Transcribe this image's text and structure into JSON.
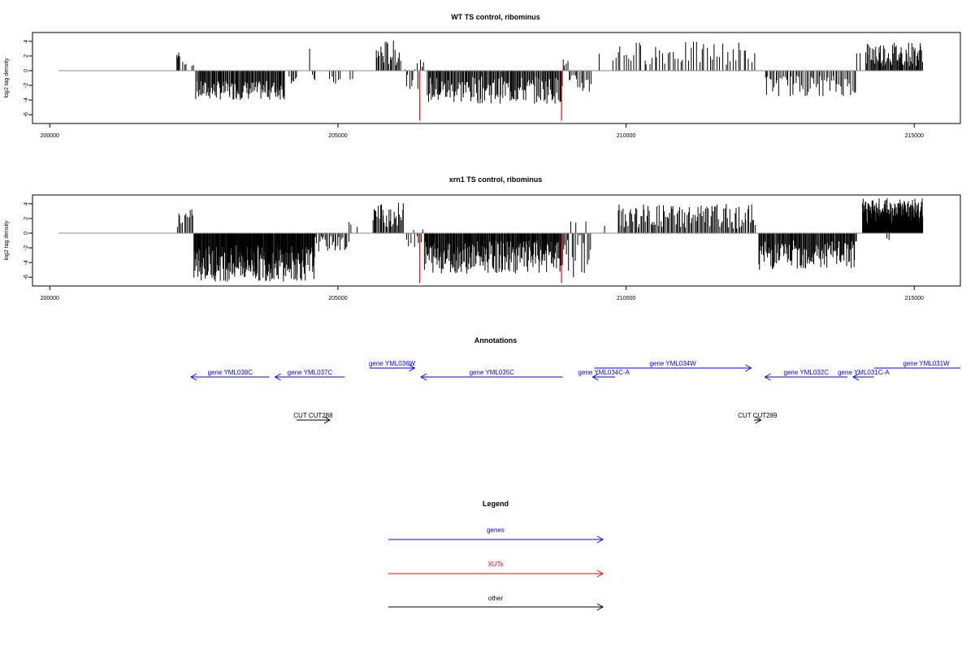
{
  "chart_data": [
    {
      "type": "bar",
      "title": "WT TS control, ribominus",
      "ylabel": "log2 tag density",
      "xlabel": "",
      "xlim": [
        199700,
        215800
      ],
      "ylim": [
        -7.2,
        5.2
      ],
      "xticks": [
        200000,
        205000,
        210000,
        215000
      ],
      "xtick_labels": [
        "200000",
        "205000",
        "210000",
        "215000"
      ],
      "yticks": [
        -6,
        -4,
        -2,
        0,
        2,
        4
      ],
      "ytick_labels": [
        "-6",
        "-4",
        "-2",
        "0",
        "2",
        "4"
      ],
      "baseline": [
        200150,
        215150
      ],
      "colors": {
        "bars": "#000000",
        "highlight": "#ff0000",
        "baseline": "#888888"
      },
      "segments": [
        {
          "from": 202200,
          "to": 202260,
          "count": 5,
          "min": 1.5,
          "max": 2.6
        },
        {
          "from": 202300,
          "to": 202380,
          "count": 3,
          "min": 0.8,
          "max": 1.3
        },
        {
          "from": 202450,
          "to": 202510,
          "count": 2,
          "min": 0.6,
          "max": 1.0
        },
        {
          "from": 202530,
          "to": 204080,
          "count": 110,
          "min": -4.0,
          "max": -1.4
        },
        {
          "from": 204150,
          "to": 204300,
          "count": 6,
          "min": -1.8,
          "max": -0.4
        },
        {
          "from": 204480,
          "to": 204520,
          "count": 1,
          "min": 3.0,
          "max": 3.0
        },
        {
          "from": 204550,
          "to": 204620,
          "count": 3,
          "min": -1.5,
          "max": -0.5
        },
        {
          "from": 204850,
          "to": 205050,
          "count": 6,
          "min": -2.0,
          "max": -0.8
        },
        {
          "from": 205200,
          "to": 205300,
          "count": 2,
          "min": -1.5,
          "max": -1.0
        },
        {
          "from": 205650,
          "to": 206100,
          "count": 22,
          "min": 0.6,
          "max": 4.2
        },
        {
          "from": 206150,
          "to": 206500,
          "count": 12,
          "min": -2.5,
          "max": 1.5
        },
        {
          "from": 206550,
          "to": 208900,
          "count": 150,
          "min": -4.5,
          "max": -0.8
        },
        {
          "from": 208900,
          "to": 209000,
          "count": 4,
          "min": 0.5,
          "max": 1.6
        },
        {
          "from": 209000,
          "to": 209400,
          "count": 15,
          "min": -3.2,
          "max": -0.5
        },
        {
          "from": 209500,
          "to": 209550,
          "count": 1,
          "min": 2.3,
          "max": 2.3
        },
        {
          "from": 209750,
          "to": 212250,
          "count": 55,
          "min": 0.8,
          "max": 4.0
        },
        {
          "from": 212400,
          "to": 214000,
          "count": 60,
          "min": -3.5,
          "max": -0.6
        },
        {
          "from": 214000,
          "to": 214100,
          "count": 2,
          "min": 2.0,
          "max": 2.5
        },
        {
          "from": 214150,
          "to": 215150,
          "count": 70,
          "min": 0.6,
          "max": 4.0
        }
      ],
      "highlights": [
        {
          "x": 206420,
          "y": -6.8
        },
        {
          "x": 208880,
          "y": -6.8
        }
      ]
    },
    {
      "type": "bar",
      "title": "xrn1 TS control, ribominus",
      "ylabel": "log2 tag density",
      "xlabel": "",
      "xlim": [
        199700,
        215800
      ],
      "ylim": [
        -7.2,
        5.2
      ],
      "xticks": [
        200000,
        205000,
        210000,
        215000
      ],
      "xtick_labels": [
        "200000",
        "205000",
        "210000",
        "215000"
      ],
      "yticks": [
        -6,
        -4,
        -2,
        0,
        2,
        4
      ],
      "ytick_labels": [
        "-6",
        "-4",
        "-2",
        "0",
        "2",
        "4"
      ],
      "baseline": [
        200150,
        215150
      ],
      "colors": {
        "bars": "#000000",
        "highlight": "#ff0000",
        "baseline": "#888888"
      },
      "segments": [
        {
          "from": 202200,
          "to": 202500,
          "count": 12,
          "min": 0.8,
          "max": 3.3
        },
        {
          "from": 202500,
          "to": 204600,
          "count": 230,
          "min": -6.6,
          "max": -1.6
        },
        {
          "from": 204600,
          "to": 205200,
          "count": 25,
          "min": -2.5,
          "max": -0.4
        },
        {
          "from": 205150,
          "to": 205350,
          "count": 3,
          "min": 0.8,
          "max": 1.6
        },
        {
          "from": 205600,
          "to": 206150,
          "count": 30,
          "min": 0.8,
          "max": 4.2
        },
        {
          "from": 206150,
          "to": 206500,
          "count": 10,
          "min": -2.0,
          "max": 1.5
        },
        {
          "from": 206500,
          "to": 208900,
          "count": 220,
          "min": -5.5,
          "max": -1.0
        },
        {
          "from": 208900,
          "to": 209400,
          "count": 20,
          "min": -6.0,
          "max": 2.0
        },
        {
          "from": 209600,
          "to": 209650,
          "count": 1,
          "min": 1.0,
          "max": 1.0
        },
        {
          "from": 209850,
          "to": 212250,
          "count": 110,
          "min": 0.6,
          "max": 4.0
        },
        {
          "from": 212300,
          "to": 214000,
          "count": 130,
          "min": -5.0,
          "max": -1.0
        },
        {
          "from": 214100,
          "to": 215150,
          "count": 200,
          "min": 1.0,
          "max": 4.8
        },
        {
          "from": 214500,
          "to": 214600,
          "count": 2,
          "min": -1.0,
          "max": -0.6
        }
      ],
      "highlights": [
        {
          "x": 206420,
          "y": -6.8
        },
        {
          "x": 208880,
          "y": -6.8
        }
      ]
    }
  ],
  "annotations": {
    "title": "Annotations",
    "xlim": [
      199700,
      215800
    ],
    "colors": {
      "gene": "#0000ff",
      "xut": "#ff0000",
      "other": "#000000"
    },
    "features": [
      {
        "label": "gene YML038C",
        "start": 202450,
        "end": 203810,
        "strand": "-",
        "row": 1,
        "kind": "gene"
      },
      {
        "label": "gene YML037C",
        "start": 203910,
        "end": 205120,
        "strand": "-",
        "row": 1,
        "kind": "gene"
      },
      {
        "label": "gene YML036W",
        "start": 205550,
        "end": 206330,
        "strand": "+",
        "row": 0,
        "kind": "gene"
      },
      {
        "label": "gene YML035C",
        "start": 206440,
        "end": 208900,
        "strand": "-",
        "row": 1,
        "kind": "gene"
      },
      {
        "label": "gene YML034C-A",
        "start": 209420,
        "end": 209810,
        "strand": "-",
        "row": 1,
        "kind": "gene"
      },
      {
        "label": "gene YML034W",
        "start": 209450,
        "end": 212170,
        "strand": "+",
        "row": 0,
        "kind": "gene"
      },
      {
        "label": "gene YML032C",
        "start": 212410,
        "end": 213840,
        "strand": "-",
        "row": 1,
        "kind": "gene"
      },
      {
        "label": "gene YML031C-A",
        "start": 213940,
        "end": 214300,
        "strand": "-",
        "row": 1,
        "kind": "gene"
      },
      {
        "label": "gene YML031W",
        "start": 214300,
        "end": 215800,
        "strand": "+",
        "row": 0,
        "kind": "gene",
        "open_end": true
      },
      {
        "label": "CUT CUT288",
        "start": 204280,
        "end": 204860,
        "strand": "+",
        "row": 3,
        "kind": "other"
      },
      {
        "label": "CUT CUT289",
        "start": 212220,
        "end": 212340,
        "strand": "+",
        "row": 3,
        "kind": "other"
      }
    ]
  },
  "legend": {
    "title": "Legend",
    "items": [
      {
        "label": "genes",
        "color": "#0000ff"
      },
      {
        "label": "XUTs",
        "color": "#ff0000"
      },
      {
        "label": "other",
        "color": "#000000"
      }
    ]
  }
}
